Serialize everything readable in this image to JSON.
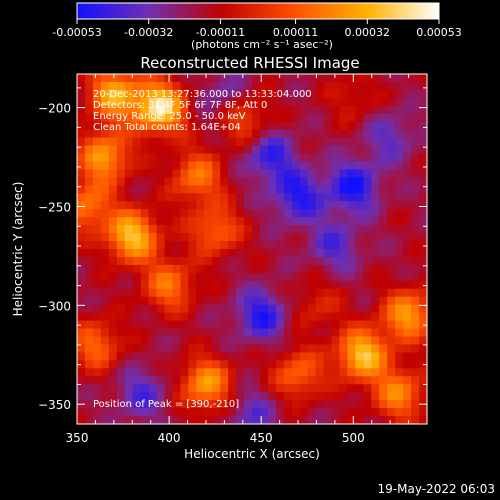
{
  "chart_data": {
    "type": "heatmap",
    "title": "Reconstructed RHESSI Image",
    "xlabel": "Heliocentric X (arcsec)",
    "ylabel": "Heliocentric Y (arcsec)",
    "xlim": [
      350,
      540
    ],
    "ylim": [
      -360,
      -183
    ],
    "xticks": [
      350,
      400,
      450,
      500
    ],
    "yticks": [
      -200,
      -250,
      -300,
      -350
    ],
    "colorbar": {
      "label": "(photons cm⁻² s⁻¹ asec⁻²)",
      "range": [
        -0.00053,
        0.00053
      ],
      "ticks": [
        "-0.00053",
        "-0.00032",
        "-0.00011",
        "0.00011",
        "0.00032",
        "0.00053"
      ],
      "stops": [
        "#1010ff",
        "#7030b0",
        "#c00000",
        "#ff5000",
        "#ffb000",
        "#ffffff"
      ]
    },
    "annotations": [
      "20-Dec-2013 13:27:36.000 to 13:33:04.000",
      "Detectors: 3F 4F 5F 6F 7F 8F, Att 0",
      "Energy Range: 25.0 - 50.0 keV",
      "Clean     Total counts: 1.64E+04",
      "Position of Peak = [390,-210]"
    ],
    "peak": [
      390,
      -210
    ],
    "blobs": [
      {
        "x": 395,
        "y": -200,
        "v": 1.0
      },
      {
        "x": 370,
        "y": -193,
        "v": 0.75
      },
      {
        "x": 365,
        "y": -225,
        "v": 0.7
      },
      {
        "x": 380,
        "y": -265,
        "v": 0.85
      },
      {
        "x": 355,
        "y": -250,
        "v": 0.55
      },
      {
        "x": 400,
        "y": -290,
        "v": 0.55
      },
      {
        "x": 425,
        "y": -262,
        "v": 0.5
      },
      {
        "x": 415,
        "y": -235,
        "v": 0.55
      },
      {
        "x": 440,
        "y": -205,
        "v": 0.45
      },
      {
        "x": 360,
        "y": -320,
        "v": 0.5
      },
      {
        "x": 420,
        "y": -340,
        "v": 0.7
      },
      {
        "x": 470,
        "y": -335,
        "v": 0.5
      },
      {
        "x": 505,
        "y": -325,
        "v": 0.85
      },
      {
        "x": 530,
        "y": -305,
        "v": 0.7
      },
      {
        "x": 525,
        "y": -345,
        "v": 0.6
      },
      {
        "x": 480,
        "y": -300,
        "v": 0.25
      },
      {
        "x": 500,
        "y": -195,
        "v": 0.2
      },
      {
        "x": 470,
        "y": -245,
        "v": -0.5
      },
      {
        "x": 500,
        "y": -240,
        "v": -0.55
      },
      {
        "x": 455,
        "y": -225,
        "v": -0.45
      },
      {
        "x": 450,
        "y": -305,
        "v": -0.5
      },
      {
        "x": 490,
        "y": -270,
        "v": -0.35
      },
      {
        "x": 430,
        "y": -195,
        "v": -0.3
      },
      {
        "x": 385,
        "y": -345,
        "v": -0.35
      },
      {
        "x": 520,
        "y": -215,
        "v": -0.3
      },
      {
        "x": 445,
        "y": -355,
        "v": -0.3
      }
    ]
  },
  "footer": {
    "timestamp": "19-May-2022 06:03"
  }
}
